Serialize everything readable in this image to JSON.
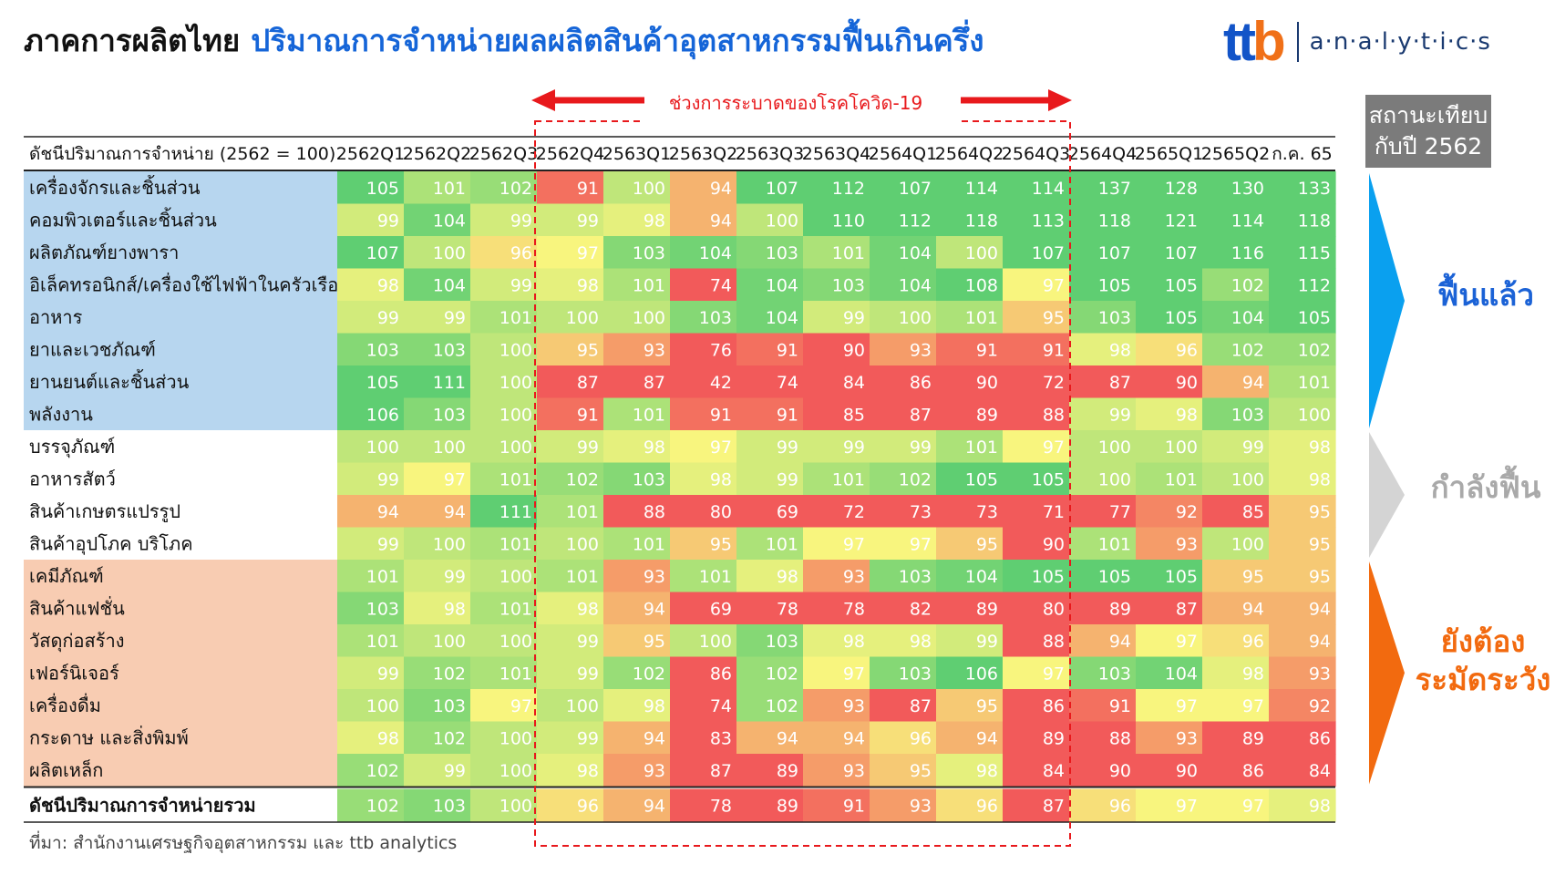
{
  "title": {
    "part1": "ภาคการผลิตไทย",
    "part2": "ปริมาณการจำหน่ายผลผลิตสินค้าอุตสาหกรรมฟื้นเกินครึ่ง"
  },
  "logo": {
    "brand_part1": "tt",
    "brand_part2": "b",
    "text": "a·n·a·l·y·t·i·c·s"
  },
  "covid_label": "ช่วงการระบาดของโรคโควิด-19",
  "status_header": {
    "line1": "สถานะเทียบ",
    "line2": "กับปี 2562"
  },
  "groups": [
    {
      "label": "ฟื้นแล้ว",
      "color": "#1b62d6",
      "arrow_color": "#0aa0ef"
    },
    {
      "label": "กำลังฟื้น",
      "color": "#a9a9a9",
      "arrow_color": "#d4d4d4"
    },
    {
      "label": "ยังต้อง\nระมัดระวัง",
      "color": "#f26a0f",
      "arrow_color": "#f26a0f"
    }
  ],
  "colors": {
    "red": "#f25a5a",
    "yellow": "#f8f57e",
    "green": "#5fce72",
    "blue_band": "#b7d6ef",
    "orange_band": "#f8ccb2",
    "covid": "#e8191c"
  },
  "chart_data": {
    "type": "table",
    "header_label": "ดัชนีปริมาณการจำหน่าย (2562 = 100)",
    "columns": [
      "2562Q1",
      "2562Q2",
      "2562Q3",
      "2562Q4",
      "2563Q1",
      "2563Q2",
      "2563Q3",
      "2563Q4",
      "2564Q1",
      "2564Q2",
      "2564Q3",
      "2564Q4",
      "2565Q1",
      "2565Q2",
      "ก.ค. 65"
    ],
    "covid_period": [
      "2562Q4",
      "2564Q3"
    ],
    "color_scale": {
      "min": 90,
      "mid": 97,
      "max": 105
    },
    "rows": [
      {
        "label": "เครื่องจักรและชิ้นส่วน",
        "group": 0,
        "values": [
          105,
          101,
          102,
          91,
          100,
          94,
          107,
          112,
          107,
          114,
          114,
          137,
          128,
          130,
          133
        ]
      },
      {
        "label": "คอมพิวเตอร์และชิ้นส่วน",
        "group": 0,
        "values": [
          99,
          104,
          99,
          99,
          98,
          94,
          100,
          110,
          112,
          118,
          113,
          118,
          121,
          114,
          118
        ]
      },
      {
        "label": "ผลิตภัณฑ์ยางพารา",
        "group": 0,
        "values": [
          107,
          100,
          96,
          97,
          103,
          104,
          103,
          101,
          104,
          100,
          107,
          107,
          107,
          116,
          115
        ]
      },
      {
        "label": "อิเล็คทรอนิกส์/เครื่องใช้ไฟฟ้าในครัวเรือน",
        "group": 0,
        "values": [
          98,
          104,
          99,
          98,
          101,
          74,
          104,
          103,
          104,
          108,
          97,
          105,
          105,
          102,
          112
        ]
      },
      {
        "label": "อาหาร",
        "group": 0,
        "values": [
          99,
          99,
          101,
          100,
          100,
          103,
          104,
          99,
          100,
          101,
          95,
          103,
          105,
          104,
          105
        ]
      },
      {
        "label": "ยาและเวชภัณฑ์",
        "group": 0,
        "values": [
          103,
          103,
          100,
          95,
          93,
          76,
          91,
          90,
          93,
          91,
          91,
          98,
          96,
          102,
          102
        ]
      },
      {
        "label": "ยานยนต์และชิ้นส่วน",
        "group": 0,
        "values": [
          105,
          111,
          100,
          87,
          87,
          42,
          74,
          84,
          86,
          90,
          72,
          87,
          90,
          94,
          101
        ]
      },
      {
        "label": "พลังงาน",
        "group": 0,
        "values": [
          106,
          103,
          100,
          91,
          101,
          91,
          91,
          85,
          87,
          89,
          88,
          99,
          98,
          103,
          100
        ]
      },
      {
        "label": "บรรจุภัณฑ์",
        "group": 1,
        "values": [
          100,
          100,
          100,
          99,
          98,
          97,
          99,
          99,
          99,
          101,
          97,
          100,
          100,
          99,
          98
        ]
      },
      {
        "label": "อาหารสัตว์",
        "group": 1,
        "values": [
          99,
          97,
          101,
          102,
          103,
          98,
          99,
          101,
          102,
          105,
          105,
          100,
          101,
          100,
          98
        ]
      },
      {
        "label": "สินค้าเกษตรแปรรูป",
        "group": 1,
        "values": [
          94,
          94,
          111,
          101,
          88,
          80,
          69,
          72,
          73,
          73,
          71,
          77,
          92,
          85,
          95
        ]
      },
      {
        "label": "สินค้าอุปโภค บริโภค",
        "group": 1,
        "values": [
          99,
          100,
          101,
          100,
          101,
          95,
          101,
          97,
          97,
          95,
          90,
          101,
          93,
          100,
          95
        ]
      },
      {
        "label": "เคมีภัณฑ์",
        "group": 2,
        "values": [
          101,
          99,
          100,
          101,
          93,
          101,
          98,
          93,
          103,
          104,
          105,
          105,
          105,
          95,
          95
        ]
      },
      {
        "label": "สินค้าแฟชั่น",
        "group": 2,
        "values": [
          103,
          98,
          101,
          98,
          94,
          69,
          78,
          78,
          82,
          89,
          80,
          89,
          87,
          94,
          94
        ]
      },
      {
        "label": "วัสดุก่อสร้าง",
        "group": 2,
        "values": [
          101,
          100,
          100,
          99,
          95,
          100,
          103,
          98,
          98,
          99,
          88,
          94,
          97,
          96,
          94
        ]
      },
      {
        "label": "เฟอร์นิเจอร์",
        "group": 2,
        "values": [
          99,
          102,
          101,
          99,
          102,
          86,
          102,
          97,
          103,
          106,
          97,
          103,
          104,
          98,
          93
        ]
      },
      {
        "label": "เครื่องดื่ม",
        "group": 2,
        "values": [
          100,
          103,
          97,
          100,
          98,
          74,
          102,
          93,
          87,
          95,
          86,
          91,
          97,
          97,
          92
        ]
      },
      {
        "label": "กระดาษ และสิ่งพิมพ์",
        "group": 2,
        "values": [
          98,
          102,
          100,
          99,
          94,
          83,
          94,
          94,
          96,
          94,
          89,
          88,
          93,
          89,
          86
        ]
      },
      {
        "label": "ผลิตเหล็ก",
        "group": 2,
        "values": [
          102,
          99,
          100,
          98,
          93,
          87,
          89,
          93,
          95,
          98,
          84,
          90,
          90,
          86,
          84
        ]
      }
    ],
    "total_row": {
      "label": "ดัชนีปริมาณการจำหน่ายรวม",
      "values": [
        102,
        103,
        100,
        96,
        94,
        78,
        89,
        91,
        93,
        96,
        87,
        96,
        97,
        97,
        98
      ]
    }
  },
  "source": "ที่มา: สำนักงานเศรษฐกิจอุตสาหกรรม และ ttb analytics"
}
